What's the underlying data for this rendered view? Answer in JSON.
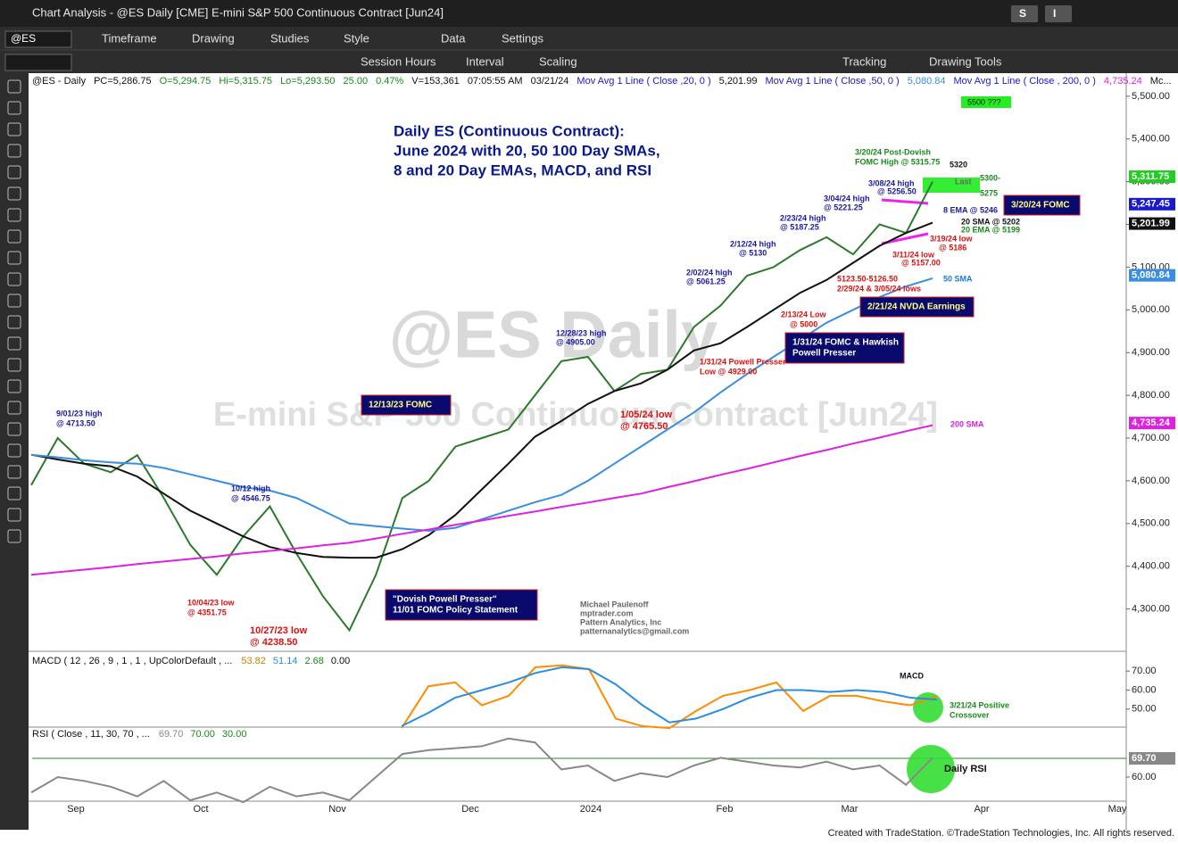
{
  "window": {
    "title": "Chart Analysis - @ES Daily [CME] E-mini S&P 500 Continuous Contract [Jun24]",
    "buttons": [
      "S",
      "I"
    ]
  },
  "toolbar": {
    "symbol": "@ES",
    "row1": [
      "Timeframe",
      "Drawing",
      "Studies",
      "Style",
      "Data",
      "Settings"
    ],
    "row2": [
      "Session Hours",
      "Interval",
      "Scaling",
      "Tracking",
      "Drawing Tools"
    ]
  },
  "status_line": [
    "@ES - Daily",
    "PC=5,286.75",
    "O=5,294.75",
    "Hi=5,315.75",
    "Lo=5,293.50",
    "25.00",
    "0.47%",
    "V=153,361",
    "07:05:55 AM",
    "03/21/24",
    "Mov Avg 1 Line ( Close ,20, 0 )",
    "5,201.99",
    "Mov Avg 1 Line ( Close ,50, 0 )",
    "5,080.84",
    "Mov Avg 1 Line ( Close , 200, 0 )",
    "4,735.24",
    "Mc..."
  ],
  "headline": [
    "Daily ES (Continuous Contract):",
    "June 2024 with 20, 50 100 Day SMAs,",
    "8 and 20 Day EMAs, MACD, and RSI"
  ],
  "watermark": [
    "@ES Daily",
    "E-mini S&P 500 Continuous Contract [Jun24]"
  ],
  "target_box": "5500  ???",
  "annotations": [
    "9/01/23 high",
    "@ 4713.50",
    "10/12 high",
    "@ 4546.75",
    "10/04/23 low",
    "@ 4351.75",
    "10/27/23 low",
    "@ 4238.50",
    "12/28/23 high",
    "@ 4905.00",
    "1/05/24 low",
    "@ 4765.50",
    "1/31/24 Powell Presser",
    "Low @ 4929.00",
    "2/02/24 high",
    "@ 5061.25",
    "2/12/24 high",
    "@ 5130",
    "2/23/24 high",
    "@ 5187.25",
    "3/04/24 high",
    "@ 5221.25",
    "3/08/24 high",
    "@ 5256.50",
    "3/20/24 Post-Dovish",
    "FOMC High @ 5315.75",
    "5320",
    "Last",
    "5300-",
    "5275",
    "8 EMA @ 5246",
    "20 SMA @ 5202",
    "20 EMA @ 5199",
    "3/19/24 low",
    "@ 5186",
    "3/11/24 low",
    "@ 5157.00",
    "5123.50-5126.50",
    "2/29/24 & 3/05/24 lows",
    "2/13/24 Low",
    "@ 5000",
    "50 SMA",
    "200 SMA",
    "Michael Paulenoff",
    "mptrader.com",
    "Pattern Analytics, Inc",
    "patternanalytics@gmail.com",
    "MACD",
    "3/21/24 Positive",
    "Crossover",
    "Daily RSI"
  ],
  "boxes": [
    [
      "12/13/23 FOMC"
    ],
    [
      "\"Dovish Powell Presser\"",
      "11/01 FOMC Policy Statement"
    ],
    [
      "1/31/24 FOMC & Hawkish",
      "Powell Presser"
    ],
    [
      "2/21/24 NVDA Earnings"
    ],
    [
      "3/20/24 FOMC"
    ]
  ],
  "x_axis_labels": [
    "Sep",
    "Oct",
    "Nov",
    "Dec",
    "2024",
    "Feb",
    "Mar",
    "Apr",
    "May"
  ],
  "chart_data": [
    {
      "type": "line",
      "ylim": [
        4201,
        5554
      ],
      "yticks": [
        {
          "value": 4300,
          "label": "4,300.00"
        },
        {
          "value": 4400,
          "label": "4,400.00"
        },
        {
          "value": 4500,
          "label": "4,500.00"
        },
        {
          "value": 4600,
          "label": "4,600.00"
        },
        {
          "value": 4700,
          "label": "4,700.00"
        },
        {
          "value": 4800,
          "label": "4,800.00"
        },
        {
          "value": 4900,
          "label": "4,900.00"
        },
        {
          "value": 5000,
          "label": "5,000.00"
        },
        {
          "value": 5100,
          "label": "5,100.00"
        },
        {
          "value": 5200,
          "label": "5,200.00"
        },
        {
          "value": 5300,
          "label": "5,300.00"
        },
        {
          "value": 5400,
          "label": "5,400.00"
        },
        {
          "value": 5500,
          "label": "5,500.00"
        }
      ],
      "price_markers": [
        {
          "value": 5311.75,
          "label": "5,311.75",
          "color": "#22cc22"
        },
        {
          "value": 5247.45,
          "label": "5,247.45",
          "color": "#1a1acc"
        },
        {
          "value": 5201.99,
          "label": "5,201.99",
          "color": "#111111"
        },
        {
          "value": 5080.84,
          "label": "5,080.84",
          "color": "#3a8ee0"
        },
        {
          "value": 4735.24,
          "label": "4,735.24",
          "color": "#e020e0"
        }
      ],
      "series": [
        {
          "color": "#2a7a2a",
          "values": [
            4590,
            4700,
            4640,
            4620,
            4660,
            4560,
            4450,
            4380,
            4470,
            4540,
            4430,
            4330,
            4250,
            4380,
            4560,
            4600,
            4680,
            4700,
            4720,
            4800,
            4880,
            4890,
            4810,
            4850,
            4860,
            4960,
            5010,
            5080,
            5100,
            5140,
            5170,
            5130,
            5200,
            5180,
            5300
          ]
        },
        {
          "color": "#111111",
          "values": [
            4661,
            4650,
            4640,
            4634,
            4610,
            4570,
            4530,
            4500,
            4470,
            4445,
            4431,
            4422,
            4420,
            4420,
            4440,
            4473,
            4520,
            4580,
            4640,
            4703,
            4740,
            4780,
            4810,
            4828,
            4860,
            4905,
            4922,
            4960,
            5000,
            5040,
            5070,
            5110,
            5150,
            5180,
            5204
          ]
        },
        {
          "color": "#3a8ee0",
          "values": [
            4661,
            4655,
            4648,
            4643,
            4640,
            4630,
            4615,
            4600,
            4585,
            4577,
            4560,
            4530,
            4500,
            4494,
            4488,
            4483,
            4490,
            4510,
            4530,
            4550,
            4567,
            4600,
            4640,
            4680,
            4720,
            4760,
            4807,
            4850,
            4890,
            4930,
            4970,
            5000,
            5030,
            5055,
            5074
          ]
        },
        {
          "color": "#e020e0",
          "values": [
            4380,
            4386,
            4392,
            4398,
            4405,
            4411,
            4417,
            4423,
            4430,
            4436,
            4442,
            4449,
            4455,
            4465,
            4476,
            4486,
            4497,
            4507,
            4518,
            4528,
            4539,
            4549,
            4560,
            4570,
            4585,
            4599,
            4614,
            4628,
            4643,
            4658,
            4672,
            4687,
            4701,
            4716,
            4730
          ]
        }
      ]
    },
    {
      "type": "line",
      "title": "MACD ( 12 , 26 , 9 , 1 , 1 , UpColorDefault , ...",
      "readouts": [
        "53.82",
        "51.14",
        "2.68",
        "0.00"
      ],
      "ylim": [
        40.5,
        79
      ],
      "yticks": [
        {
          "value": 50,
          "label": "50.00"
        },
        {
          "value": 60,
          "label": "60.00"
        },
        {
          "value": 70,
          "label": "70.00"
        }
      ],
      "series": [
        {
          "color": "#ff8c00",
          "values": [
            40,
            62,
            64,
            52,
            57,
            72,
            73,
            71,
            45,
            41,
            40,
            49,
            57,
            60,
            64,
            49,
            57,
            57,
            54,
            52,
            57
          ]
        },
        {
          "color": "#2a8ee0",
          "values": [
            41,
            48,
            56,
            60,
            64,
            69,
            72,
            71,
            63,
            52,
            43,
            45,
            50,
            56,
            60,
            60,
            59,
            60,
            59,
            56,
            55
          ]
        }
      ]
    },
    {
      "type": "line",
      "title": "RSI ( Close , 11, 30, 70 , ...",
      "readouts": [
        "69.70",
        "70.00",
        "30.00"
      ],
      "ylim": [
        46.6,
        85.9
      ],
      "yticks": [
        {
          "value": 60,
          "label": "60.00"
        }
      ],
      "price_markers": [
        {
          "value": 69.7,
          "label": "69.70",
          "color": "#888888"
        }
      ],
      "series": [
        {
          "color": "#888888",
          "values": [
            52,
            60,
            58,
            55,
            50,
            58,
            48,
            52,
            47,
            55,
            50,
            52,
            48,
            60,
            72,
            74,
            75,
            76,
            80,
            78,
            64,
            66,
            58,
            62,
            60,
            66,
            70,
            68,
            66,
            65,
            68,
            64,
            66,
            56,
            70
          ]
        }
      ]
    }
  ],
  "footer": "Created with TradeStation. ©TradeStation Technologies, Inc. All rights reserved."
}
